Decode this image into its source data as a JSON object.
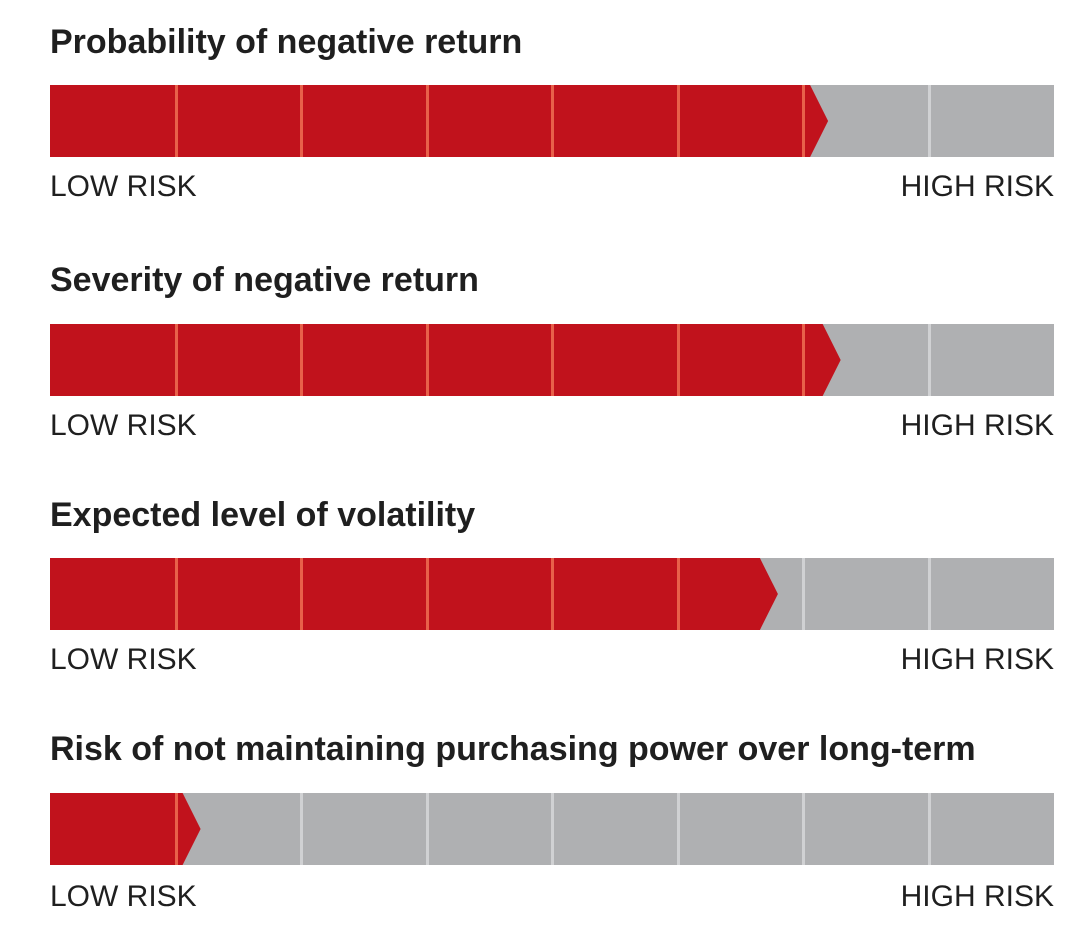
{
  "colors": {
    "filled": "#c1121c",
    "empty": "#afb0b2",
    "filled_divider": "#e8604a",
    "empty_divider": "#d0d1d3"
  },
  "chart_data": [
    {
      "type": "bar",
      "title": "Probability of negative return",
      "segments_total": 8,
      "level": 6.2,
      "scale_low_label": "LOW RISK",
      "scale_high_label": "HIGH RISK"
    },
    {
      "type": "bar",
      "title": "Severity of negative return",
      "segments_total": 8,
      "level": 6.3,
      "scale_low_label": "LOW RISK",
      "scale_high_label": "HIGH RISK"
    },
    {
      "type": "bar",
      "title": "Expected level of volatility",
      "segments_total": 8,
      "level": 5.8,
      "scale_low_label": "LOW RISK",
      "scale_high_label": "HIGH RISK"
    },
    {
      "type": "bar",
      "title": "Risk of not maintaining purchasing power over long-term",
      "segments_total": 8,
      "level": 1.2,
      "scale_low_label": "LOW RISK",
      "scale_high_label": "HIGH RISK"
    }
  ]
}
